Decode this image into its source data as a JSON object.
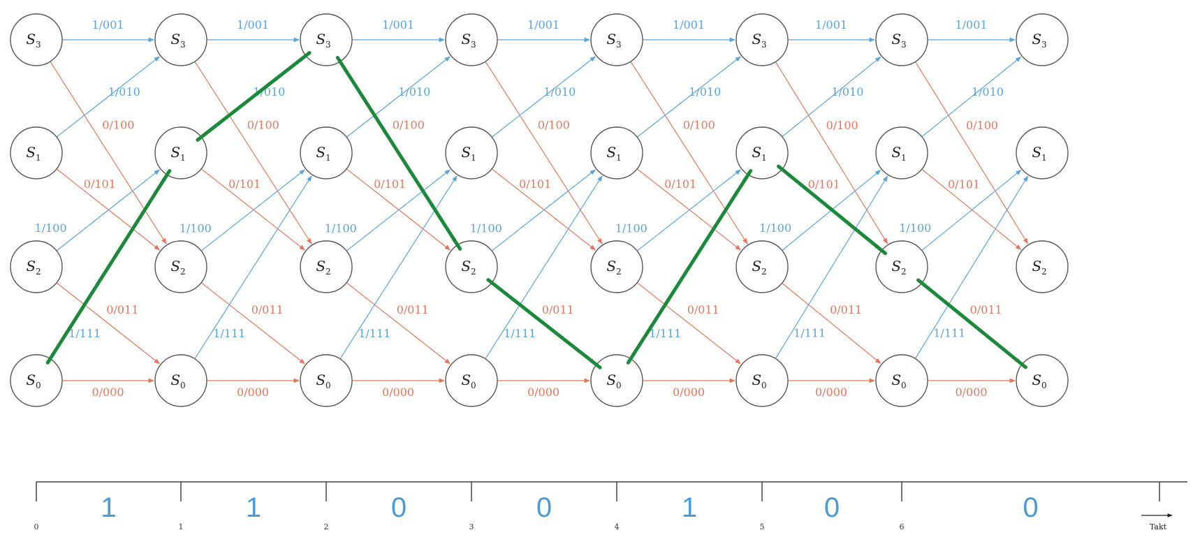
{
  "diagram": {
    "type": "trellis",
    "columns": 8,
    "states": [
      {
        "id": "S3",
        "letter": "S",
        "sub": "3"
      },
      {
        "id": "S1",
        "letter": "S",
        "sub": "1"
      },
      {
        "id": "S2",
        "letter": "S",
        "sub": "2"
      },
      {
        "id": "S0",
        "letter": "S",
        "sub": "0"
      }
    ],
    "transitions": [
      {
        "from": "S3",
        "to": "S3",
        "label": "1/001",
        "input": 1
      },
      {
        "from": "S3",
        "to": "S2",
        "label": "0/100",
        "input": 0
      },
      {
        "from": "S1",
        "to": "S3",
        "label": "1/010",
        "input": 1
      },
      {
        "from": "S1",
        "to": "S2",
        "label": "0/101",
        "input": 0
      },
      {
        "from": "S2",
        "to": "S1",
        "label": "1/100",
        "input": 1
      },
      {
        "from": "S2",
        "to": "S0",
        "label": "0/011",
        "input": 0
      },
      {
        "from": "S0",
        "to": "S1",
        "label": "1/111",
        "input": 1
      },
      {
        "from": "S0",
        "to": "S0",
        "label": "0/000",
        "input": 0
      }
    ],
    "highlighted_path": [
      "S0",
      "S1",
      "S3",
      "S2",
      "S0",
      "S1",
      "S2",
      "S0"
    ],
    "colors": {
      "input_one": "#5aa4dc",
      "input_zero": "#e8745c",
      "path": "#1a8a3a",
      "bits": "#4a9ad8"
    }
  },
  "axis": {
    "ticks": [
      "0",
      "1",
      "2",
      "3",
      "4",
      "5",
      "6"
    ],
    "bits": [
      "1",
      "1",
      "0",
      "0",
      "1",
      "0",
      "0"
    ],
    "end_label": "Takt"
  }
}
